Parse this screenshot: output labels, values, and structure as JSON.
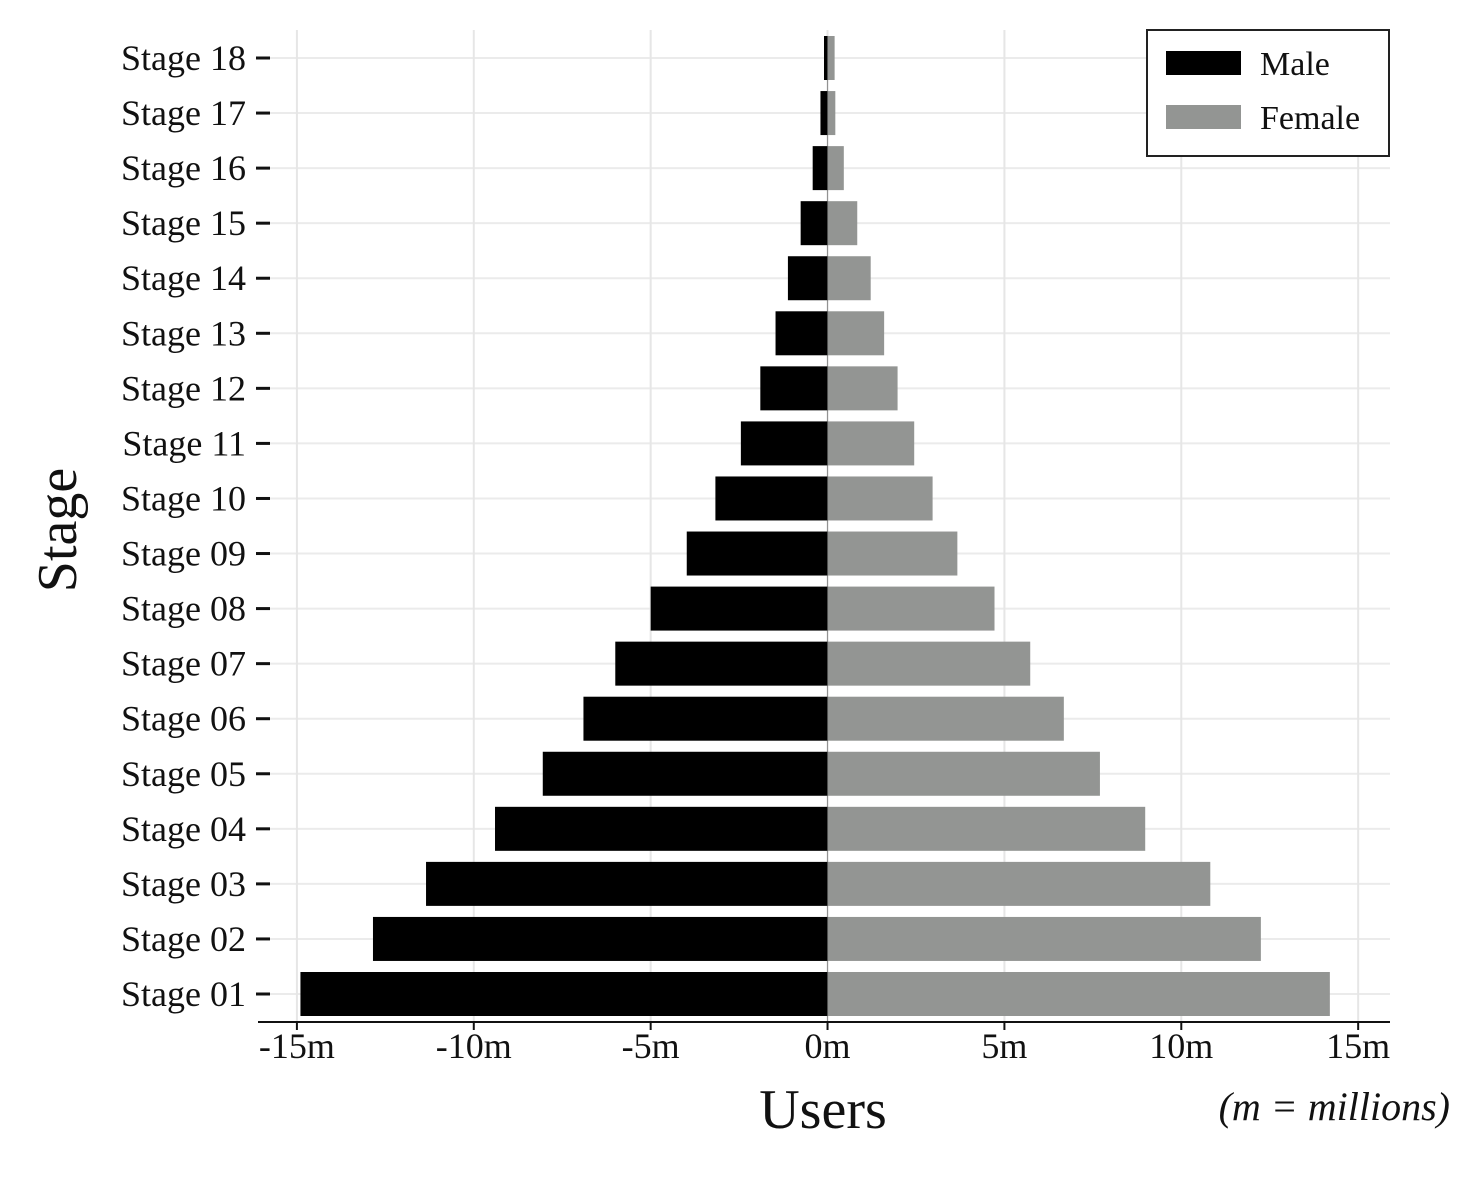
{
  "chart_data": {
    "type": "bar",
    "orientation": "horizontal",
    "layout": "population-pyramid",
    "categories": [
      "Stage 01",
      "Stage 02",
      "Stage 03",
      "Stage 04",
      "Stage 05",
      "Stage 06",
      "Stage 07",
      "Stage 08",
      "Stage 09",
      "Stage 10",
      "Stage 11",
      "Stage 12",
      "Stage 13",
      "Stage 14",
      "Stage 15",
      "Stage 16",
      "Stage 17",
      "Stage 18"
    ],
    "series": [
      {
        "name": "Male",
        "color": "#000000",
        "values": [
          -14.9,
          -12.85,
          -11.35,
          -9.4,
          -8.05,
          -6.9,
          -6.0,
          -5.0,
          -3.98,
          -3.17,
          -2.45,
          -1.9,
          -1.47,
          -1.12,
          -0.76,
          -0.42,
          -0.2,
          -0.1
        ]
      },
      {
        "name": "Female",
        "color": "#939593",
        "values": [
          14.2,
          12.25,
          10.82,
          8.98,
          7.7,
          6.68,
          5.73,
          4.72,
          3.67,
          2.97,
          2.45,
          1.98,
          1.6,
          1.22,
          0.84,
          0.46,
          0.22,
          0.2
        ]
      }
    ],
    "xlabel": "Users",
    "ylabel": "Stage",
    "note": "(m = millions)",
    "xlim": [
      -16.1,
      15.9
    ],
    "xticks": [
      -15,
      -10,
      -5,
      0,
      5,
      10,
      15
    ],
    "xtick_labels": [
      "-15m",
      "-10m",
      "-5m",
      "0m",
      "5m",
      "10m",
      "15m"
    ],
    "grid": true,
    "legend_position": "top-right"
  }
}
